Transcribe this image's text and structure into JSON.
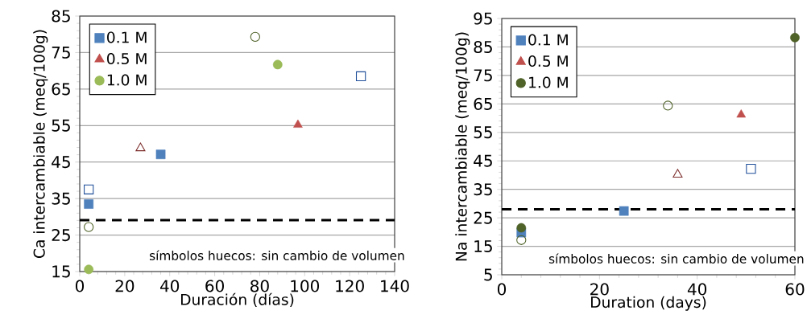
{
  "chart_data": [
    {
      "type": "scatter",
      "xlabel": "Duración (días)",
      "ylabel": "Ca intercambiable (meq/100g)",
      "xlim": [
        0,
        140
      ],
      "ylim": [
        15,
        85
      ],
      "xticks": [
        0,
        20,
        40,
        60,
        80,
        100,
        120,
        140
      ],
      "yticks": [
        15,
        25,
        35,
        45,
        55,
        65,
        75,
        85
      ],
      "grid": "y",
      "legend": "top left",
      "series": [
        {
          "name": "0.1 M",
          "color": "#4f81bd",
          "marker": "square",
          "x": [
            4,
            36
          ],
          "values": [
            33.5,
            47.1
          ]
        },
        {
          "name": "0.5 M",
          "color": "#c0504d",
          "marker": "triangle",
          "x": [
            97
          ],
          "values": [
            55.2
          ]
        },
        {
          "name": "1.0 M",
          "color": "#9bbb59",
          "marker": "circle",
          "x": [
            4,
            88
          ],
          "values": [
            15.6,
            71.7
          ]
        },
        {
          "color": "#1f4e99",
          "marker": "square",
          "x": [
            4,
            125
          ],
          "values": [
            37.5,
            68.5
          ]
        },
        {
          "color": "#7b2c2a",
          "marker": "triangle",
          "x": [
            27
          ],
          "values": [
            48.8
          ]
        },
        {
          "color": "#4f6228",
          "marker": "circle",
          "x": [
            4,
            78
          ],
          "values": [
            27.2,
            79.3
          ]
        }
      ],
      "ref_lines": [
        {
          "axis": "y",
          "value": 29.1,
          "color": "#000000",
          "line_style": "dashed"
        }
      ],
      "annotations": [
        "símbolos huecos: sin cambio de volumen"
      ]
    },
    {
      "type": "scatter",
      "xlabel": "Duration (days)",
      "ylabel": "Na intercambiable (meq/100g)",
      "xlim": [
        0,
        60
      ],
      "ylim": [
        5,
        95
      ],
      "xticks": [
        0,
        20,
        40,
        60
      ],
      "yticks": [
        5,
        15,
        25,
        35,
        45,
        55,
        65,
        75,
        85,
        95
      ],
      "grid": "y",
      "legend": "top left",
      "series": [
        {
          "name": "0.1 M",
          "color": "#4f81bd",
          "marker": "square",
          "x": [
            4,
            25
          ],
          "values": [
            19.8,
            27.4
          ]
        },
        {
          "name": "0.5 M",
          "color": "#c0504d",
          "marker": "triangle",
          "x": [
            49
          ],
          "values": [
            61.2
          ]
        },
        {
          "name": "1.0 M",
          "color": "#4f6228",
          "marker": "circle",
          "x": [
            4,
            60
          ],
          "values": [
            21.5,
            88.3
          ]
        },
        {
          "color": "#1f4e99",
          "marker": "square",
          "x": [
            51
          ],
          "values": [
            42.2
          ]
        },
        {
          "color": "#7b2c2a",
          "marker": "triangle",
          "x": [
            36
          ],
          "values": [
            40.2
          ]
        },
        {
          "color": "#4f6228",
          "marker": "circle",
          "x": [
            4,
            34
          ],
          "values": [
            17.2,
            64.4
          ]
        }
      ],
      "ref_lines": [
        {
          "axis": "y",
          "value": 28,
          "color": "#000000",
          "line_style": "dashed"
        }
      ],
      "annotations": [
        "símbolos huecos: sin cambio de volumen"
      ]
    }
  ]
}
